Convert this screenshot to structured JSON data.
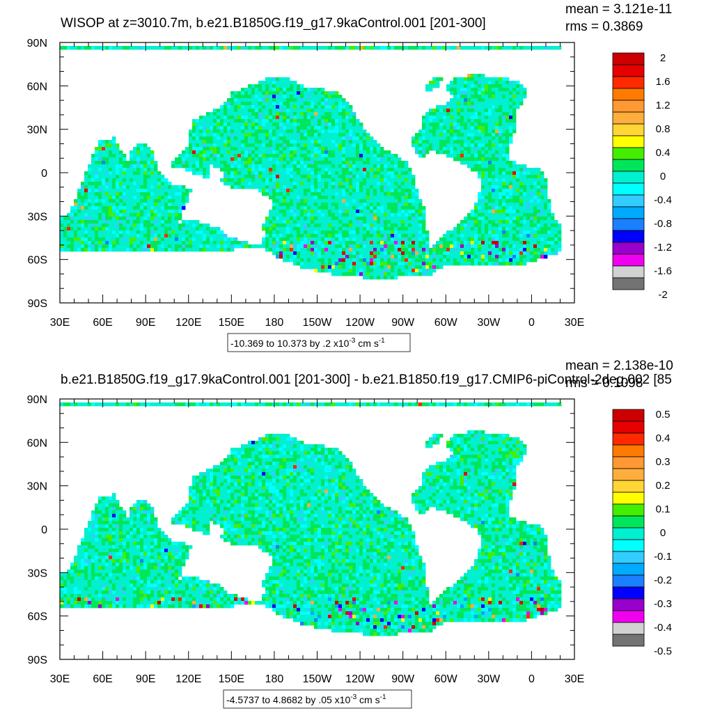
{
  "palette": [
    "#737373",
    "#d1d1d1",
    "#ef00ef",
    "#9900cc",
    "#0000ff",
    "#1a80ff",
    "#00aaff",
    "#33ccff",
    "#00ffff",
    "#00f0d0",
    "#00e65a",
    "#44ee00",
    "#ffff00",
    "#ffd633",
    "#ffae3d",
    "#ff9933",
    "#ff7a00",
    "#ff2a00",
    "#e60000",
    "#cc0000"
  ],
  "chart_data": [
    {
      "type": "heatmap",
      "title": "WISOP at z=3010.7m, b.e21.B1850G.f19_g17.9kaControl.001 [201-300]",
      "stats": {
        "mean": "mean = 3.121e-11",
        "rms": "rms = 0.3869"
      },
      "x_ticks": [
        "30E",
        "60E",
        "90E",
        "120E",
        "150E",
        "180",
        "150W",
        "120W",
        "90W",
        "60W",
        "30W",
        "0",
        "30E"
      ],
      "y_ticks": [
        "90N",
        "60N",
        "30N",
        "0",
        "30S",
        "60S",
        "90S"
      ],
      "colorbar_labels": [
        "2",
        "1.6",
        "1.2",
        "0.8",
        "0.4",
        "0",
        "-0.4",
        "-0.8",
        "-1.2",
        "-1.6",
        "-2"
      ],
      "colorbar_range": [
        -2,
        2
      ],
      "contour_info": {
        "text": "-10.369 to 10.373 by .2 x10",
        "exp": "-3",
        "unit": " cm s",
        "unit_exp": "-1"
      }
    },
    {
      "type": "heatmap",
      "title": "b.e21.B1850G.f19_g17.9kaControl.001 [201-300] - b.e21.B1850.f19_g17.CMIP6-piControl-2deg.002 [85",
      "stats": {
        "mean": "mean = 2.138e-10",
        "rms": "rms = 0.1098"
      },
      "x_ticks": [
        "30E",
        "60E",
        "90E",
        "120E",
        "150E",
        "180",
        "150W",
        "120W",
        "90W",
        "60W",
        "30W",
        "0",
        "30E"
      ],
      "y_ticks": [
        "90N",
        "60N",
        "30N",
        "0",
        "30S",
        "60S",
        "90S"
      ],
      "colorbar_labels": [
        "0.5",
        "0.4",
        "0.3",
        "0.2",
        "0.1",
        "0",
        "-0.1",
        "-0.2",
        "-0.3",
        "-0.4",
        "-0.5"
      ],
      "colorbar_range": [
        -0.5,
        0.5
      ],
      "contour_info": {
        "text": "-4.5737 to 4.8682 by .05 x10",
        "exp": "-3",
        "unit": " cm s",
        "unit_exp": "-1"
      }
    }
  ]
}
